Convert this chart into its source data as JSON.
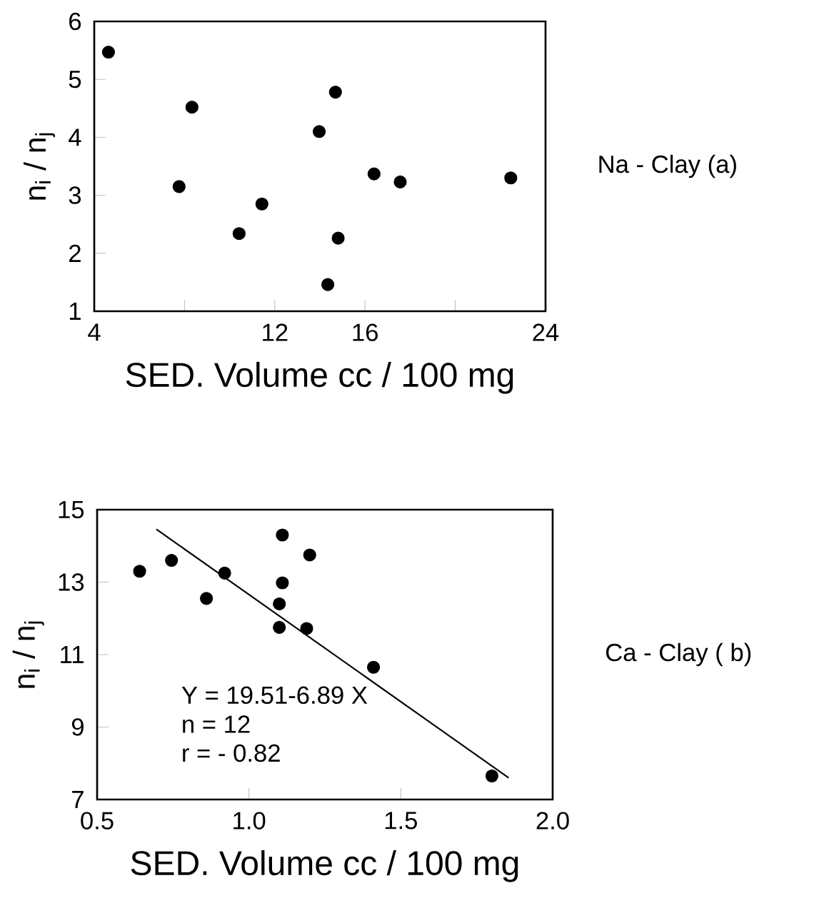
{
  "chart_data": [
    {
      "type": "scatter",
      "xlabel": "SED. Volume cc / 100 mg",
      "ylabel": "n$_{i}$ / n$_{j}$",
      "xlim": [
        4,
        24
      ],
      "xticks": [
        4,
        {
          "value": 8,
          "label": null
        },
        12,
        16,
        {
          "value": 20,
          "label": null
        },
        24
      ],
      "ylim": [
        1,
        6
      ],
      "yticks": [
        1,
        2,
        3,
        4,
        5,
        6
      ],
      "annotations": [
        "Na - Clay (a)"
      ],
      "series": [
        {
          "marker": "circle",
          "color": "#000000",
          "x": [
            4.63,
            7.76,
            8.33,
            10.42,
            11.43,
            13.97,
            14.35,
            14.69,
            14.81,
            16.4,
            17.56,
            22.46
          ],
          "values": [
            5.47,
            3.15,
            4.52,
            2.34,
            2.85,
            4.1,
            1.46,
            4.78,
            2.26,
            3.37,
            3.23,
            3.3
          ]
        }
      ]
    },
    {
      "type": "scatter",
      "xlabel": "SED. Volume cc / 100 mg",
      "ylabel": "n$_{i}$ / n$_{j}$",
      "xlim": [
        0.5,
        2.0
      ],
      "xticks": [
        {
          "value": 0.5,
          "label": "0.5"
        },
        {
          "value": 1.0,
          "label": "1.0"
        },
        {
          "value": 1.5,
          "label": "1.5"
        },
        {
          "value": 2.0,
          "label": "2.0"
        }
      ],
      "ylim": [
        7,
        15
      ],
      "yticks": [
        7,
        9,
        11,
        13,
        15
      ],
      "annotations": [
        "Y = 19.51-6.89 X",
        "n = 12",
        "r = - 0.82",
        "Ca - Clay ( b)"
      ],
      "series": [
        {
          "marker": "circle",
          "color": "#000000",
          "x": [
            0.64,
            0.745,
            0.86,
            0.92,
            1.11,
            1.2,
            1.11,
            1.1,
            1.1,
            1.19,
            1.41,
            1.8
          ],
          "values": [
            13.3,
            13.6,
            12.55,
            13.25,
            14.3,
            13.75,
            12.98,
            12.4,
            11.75,
            11.72,
            10.65,
            7.65
          ]
        },
        {
          "type": "line",
          "marker": "none",
          "color": "#000000",
          "x": [
            0.695,
            1.855
          ],
          "values": [
            14.46,
            7.6
          ]
        }
      ]
    }
  ]
}
